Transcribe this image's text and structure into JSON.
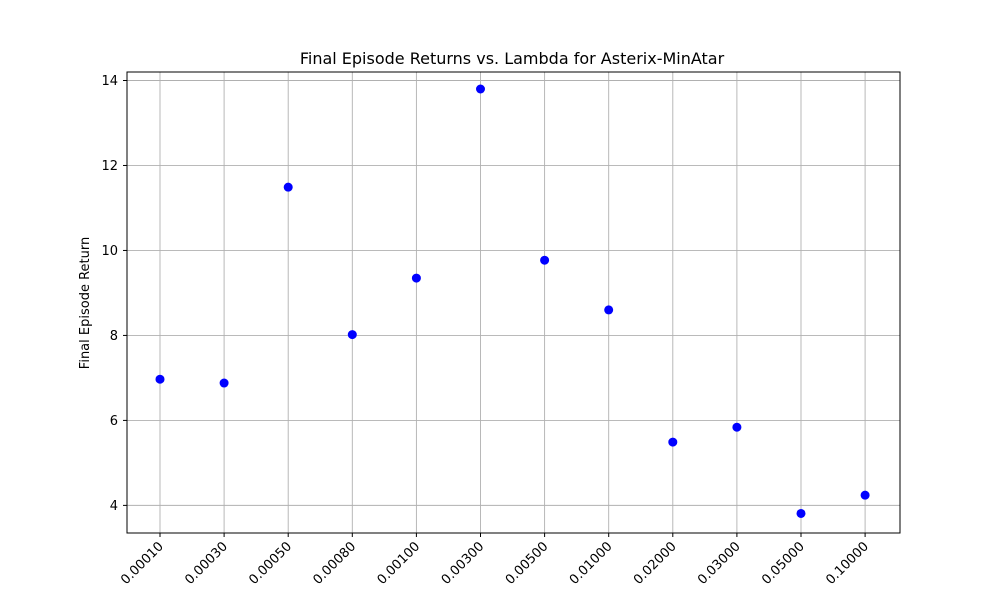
{
  "chart_data": {
    "type": "scatter",
    "title": "Final Episode Returns vs. Lambda for Asterix-MinAtar",
    "xlabel": "",
    "ylabel": "Final Episode Return",
    "x_categories": [
      "0.00010",
      "0.00030",
      "0.00050",
      "0.00080",
      "0.00100",
      "0.00300",
      "0.00500",
      "0.01000",
      "0.02000",
      "0.03000",
      "0.05000",
      "0.10000"
    ],
    "values": [
      6.97,
      6.88,
      11.49,
      8.02,
      9.35,
      13.8,
      9.77,
      8.6,
      5.49,
      5.84,
      3.81,
      4.24
    ],
    "ylim": [
      3.35,
      14.2
    ],
    "yticks": [
      4,
      6,
      8,
      10,
      12,
      14
    ],
    "grid": true,
    "marker_color": "#0000ff"
  }
}
